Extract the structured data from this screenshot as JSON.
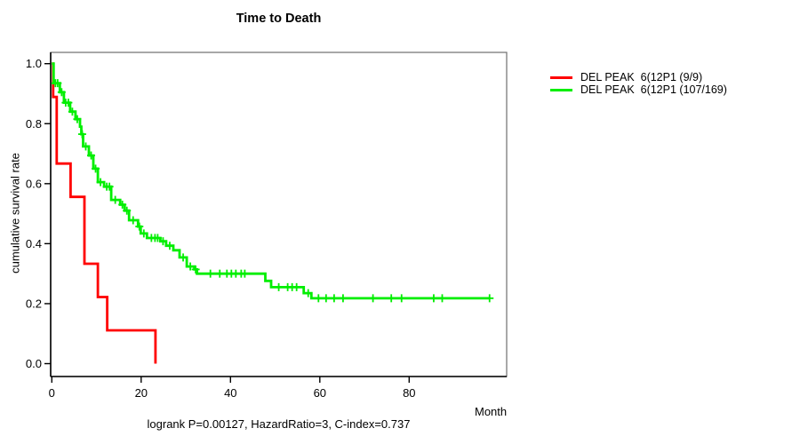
{
  "title": "Time to Death",
  "xlabel": "Month",
  "ylabel": "cumulative survival rate",
  "footer": "logrank P=0.00127, HazardRatio=3, C-index=0.737",
  "colors": {
    "series_red": "#ff0000",
    "series_green": "#00ee00",
    "axis": "#000000",
    "box": "#6e6e6e",
    "text": "#000000"
  },
  "legend": [
    {
      "label": "DEL PEAK  6(12P1 (9/9)",
      "color": "#ff0000"
    },
    {
      "label": "DEL PEAK  6(12P1 (107/169)",
      "color": "#00ee00"
    }
  ],
  "chart_data": {
    "type": "line",
    "subtype": "kaplan-meier-step",
    "title": "Time to Death",
    "xlabel": "Month",
    "ylabel": "cumulative survival rate",
    "annotation": "logrank P=0.00127, HazardRatio=3, C-index=0.737",
    "xlim": [
      0,
      100
    ],
    "ylim": [
      0.0,
      1.0
    ],
    "x_ticks": [
      0,
      20,
      40,
      60,
      80
    ],
    "y_ticks": [
      0.0,
      0.2,
      0.4,
      0.6,
      0.8,
      1.0
    ],
    "grid": false,
    "legend_position": "right-outside",
    "series": [
      {
        "name": "DEL PEAK  6(12P1 (9/9)",
        "color": "#ff0000",
        "events": "9/9",
        "start": [
          0,
          1.0
        ],
        "steps": [
          [
            0.3,
            0.889
          ],
          [
            1.1,
            0.667
          ],
          [
            4.2,
            0.556
          ],
          [
            7.3,
            0.333
          ],
          [
            10.3,
            0.222
          ],
          [
            12.4,
            0.111
          ],
          [
            23.2,
            0.0
          ]
        ],
        "end_time": 23.2,
        "censors": []
      },
      {
        "name": "DEL PEAK  6(12P1 (107/169)",
        "color": "#00ee00",
        "events": "107/169",
        "start": [
          0,
          1.0
        ],
        "steps": [
          [
            0.4,
            0.935
          ],
          [
            1.8,
            0.905
          ],
          [
            2.7,
            0.87
          ],
          [
            4.1,
            0.84
          ],
          [
            5.3,
            0.815
          ],
          [
            6.3,
            0.79
          ],
          [
            6.6,
            0.765
          ],
          [
            7.0,
            0.724
          ],
          [
            8.3,
            0.694
          ],
          [
            9.3,
            0.65
          ],
          [
            10.3,
            0.605
          ],
          [
            11.7,
            0.59
          ],
          [
            13.3,
            0.546
          ],
          [
            15.3,
            0.53
          ],
          [
            16.3,
            0.51
          ],
          [
            17.3,
            0.478
          ],
          [
            19.3,
            0.457
          ],
          [
            19.9,
            0.434
          ],
          [
            21.3,
            0.419
          ],
          [
            24.3,
            0.408
          ],
          [
            25.6,
            0.393
          ],
          [
            27.2,
            0.378
          ],
          [
            28.6,
            0.354
          ],
          [
            30.2,
            0.324
          ],
          [
            31.9,
            0.314
          ],
          [
            32.5,
            0.3
          ],
          [
            47.8,
            0.276
          ],
          [
            49.1,
            0.255
          ],
          [
            56.4,
            0.235
          ],
          [
            58.1,
            0.218
          ]
        ],
        "end_time": 98.0,
        "censors": [
          [
            0.8,
            0.935
          ],
          [
            1.3,
            0.935
          ],
          [
            2.2,
            0.905
          ],
          [
            3.1,
            0.87
          ],
          [
            3.7,
            0.87
          ],
          [
            4.6,
            0.84
          ],
          [
            5.7,
            0.815
          ],
          [
            6.8,
            0.765
          ],
          [
            7.6,
            0.724
          ],
          [
            8.8,
            0.694
          ],
          [
            9.8,
            0.65
          ],
          [
            10.9,
            0.605
          ],
          [
            12.3,
            0.59
          ],
          [
            12.9,
            0.59
          ],
          [
            14.2,
            0.546
          ],
          [
            15.8,
            0.53
          ],
          [
            16.8,
            0.51
          ],
          [
            18.2,
            0.478
          ],
          [
            19.6,
            0.457
          ],
          [
            20.6,
            0.434
          ],
          [
            22.3,
            0.419
          ],
          [
            23.1,
            0.419
          ],
          [
            23.7,
            0.419
          ],
          [
            24.9,
            0.408
          ],
          [
            26.4,
            0.393
          ],
          [
            29.4,
            0.354
          ],
          [
            31.0,
            0.324
          ],
          [
            32.2,
            0.314
          ],
          [
            35.5,
            0.3
          ],
          [
            37.6,
            0.3
          ],
          [
            39.2,
            0.3
          ],
          [
            40.2,
            0.3
          ],
          [
            41.2,
            0.3
          ],
          [
            42.4,
            0.3
          ],
          [
            43.2,
            0.3
          ],
          [
            50.8,
            0.255
          ],
          [
            52.8,
            0.255
          ],
          [
            53.8,
            0.255
          ],
          [
            54.8,
            0.255
          ],
          [
            57.4,
            0.235
          ],
          [
            59.7,
            0.218
          ],
          [
            61.4,
            0.218
          ],
          [
            63.2,
            0.218
          ],
          [
            65.2,
            0.218
          ],
          [
            71.9,
            0.218
          ],
          [
            76.0,
            0.218
          ],
          [
            78.3,
            0.218
          ],
          [
            85.5,
            0.218
          ],
          [
            87.4,
            0.218
          ],
          [
            98.0,
            0.218
          ]
        ]
      }
    ]
  }
}
